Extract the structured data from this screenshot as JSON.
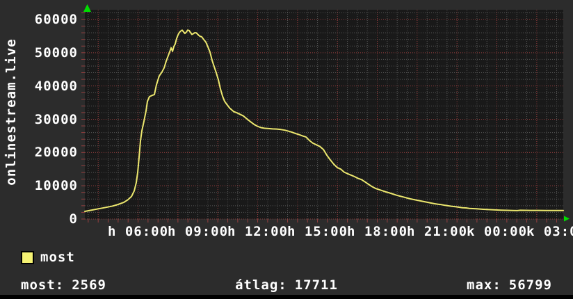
{
  "colors": {
    "frame_bg": "#2c2c2c",
    "plot_bg": "#191919",
    "grid_minor": "#575757",
    "grid_major": "#963f3f",
    "axis_tick": "#963f3f",
    "line": "#ece76e",
    "legend_swatch": "#f5f273",
    "text": "#ffffff",
    "arrow": "#00dd00",
    "bottom_bar": "#000000"
  },
  "chart_data": {
    "type": "line",
    "title": "",
    "xlabel": "",
    "ylabel": "onlinestream.live",
    "grid": "dotted, minor gray every 2000 / 30min, major red every 10000 / 2h",
    "legend_position": "bottom-left",
    "x_axis": {
      "unit": "time of day (h = Monday, k = Tuesday)",
      "start_hour": 3.33,
      "end_hour": 27.33,
      "minor_step_hours": 0.5,
      "major_step_hours": 2,
      "first_major_hour": 4,
      "labels": [
        {
          "hour": 6,
          "label": "h 06:00"
        },
        {
          "hour": 9,
          "label": "h 09:00"
        },
        {
          "hour": 12,
          "label": "h 12:00"
        },
        {
          "hour": 15,
          "label": "h 15:00"
        },
        {
          "hour": 18,
          "label": "h 18:00"
        },
        {
          "hour": 21,
          "label": "h 21:00"
        },
        {
          "hour": 24,
          "label": "k 00:00"
        },
        {
          "hour": 27,
          "label": "k 03:00"
        }
      ]
    },
    "y_axis": {
      "min": 0,
      "scale_max": 60000,
      "display_max": 62900,
      "minor_step": 2000,
      "major_step": 10000,
      "ticks": [
        {
          "value": 60000,
          "label": "60000"
        },
        {
          "value": 50000,
          "label": "50000"
        },
        {
          "value": 40000,
          "label": "40000"
        },
        {
          "value": 30000,
          "label": "30000"
        },
        {
          "value": 20000,
          "label": "20000"
        },
        {
          "value": 10000,
          "label": "10000"
        },
        {
          "value": 0,
          "label": "0"
        }
      ]
    },
    "series": [
      {
        "name": "most",
        "color": "#ece76e",
        "points": [
          [
            3.33,
            2300
          ],
          [
            3.68,
            2700
          ],
          [
            4.03,
            3100
          ],
          [
            4.38,
            3500
          ],
          [
            4.73,
            3900
          ],
          [
            5.0,
            4400
          ],
          [
            5.28,
            5000
          ],
          [
            5.49,
            5800
          ],
          [
            5.67,
            6800
          ],
          [
            5.81,
            8500
          ],
          [
            5.91,
            11000
          ],
          [
            5.98,
            14000
          ],
          [
            6.05,
            18500
          ],
          [
            6.12,
            23500
          ],
          [
            6.19,
            26500
          ],
          [
            6.3,
            29500
          ],
          [
            6.4,
            32500
          ],
          [
            6.47,
            35400
          ],
          [
            6.57,
            36800
          ],
          [
            6.71,
            37200
          ],
          [
            6.82,
            37400
          ],
          [
            6.92,
            40300
          ],
          [
            7.06,
            43000
          ],
          [
            7.2,
            44200
          ],
          [
            7.31,
            45500
          ],
          [
            7.41,
            47500
          ],
          [
            7.52,
            49200
          ],
          [
            7.59,
            50300
          ],
          [
            7.66,
            51500
          ],
          [
            7.73,
            50400
          ],
          [
            7.8,
            51900
          ],
          [
            7.86,
            52600
          ],
          [
            7.93,
            54200
          ],
          [
            8.0,
            55300
          ],
          [
            8.07,
            56100
          ],
          [
            8.14,
            56500
          ],
          [
            8.21,
            56800
          ],
          [
            8.28,
            56300
          ],
          [
            8.35,
            55800
          ],
          [
            8.42,
            56200
          ],
          [
            8.49,
            56799
          ],
          [
            8.56,
            56700
          ],
          [
            8.63,
            56100
          ],
          [
            8.7,
            55500
          ],
          [
            8.77,
            55700
          ],
          [
            8.84,
            56000
          ],
          [
            8.91,
            56000
          ],
          [
            8.98,
            55600
          ],
          [
            9.05,
            55200
          ],
          [
            9.12,
            54900
          ],
          [
            9.19,
            54800
          ],
          [
            9.29,
            54000
          ],
          [
            9.4,
            53200
          ],
          [
            9.5,
            51800
          ],
          [
            9.61,
            50200
          ],
          [
            9.71,
            47800
          ],
          [
            9.82,
            45800
          ],
          [
            9.92,
            44000
          ],
          [
            10.03,
            41800
          ],
          [
            10.13,
            39200
          ],
          [
            10.24,
            36900
          ],
          [
            10.34,
            35400
          ],
          [
            10.45,
            34500
          ],
          [
            10.59,
            33400
          ],
          [
            10.8,
            32300
          ],
          [
            10.93,
            32000
          ],
          [
            11.11,
            31500
          ],
          [
            11.28,
            31000
          ],
          [
            11.46,
            30100
          ],
          [
            11.63,
            29300
          ],
          [
            11.81,
            28500
          ],
          [
            11.98,
            27900
          ],
          [
            12.16,
            27500
          ],
          [
            12.33,
            27300
          ],
          [
            12.54,
            27200
          ],
          [
            12.75,
            27100
          ],
          [
            12.96,
            27050
          ],
          [
            13.17,
            26900
          ],
          [
            13.38,
            26700
          ],
          [
            13.55,
            26400
          ],
          [
            13.73,
            26100
          ],
          [
            13.9,
            25700
          ],
          [
            14.07,
            25400
          ],
          [
            14.25,
            25000
          ],
          [
            14.42,
            24700
          ],
          [
            14.6,
            23600
          ],
          [
            14.77,
            22800
          ],
          [
            14.95,
            22300
          ],
          [
            15.12,
            21800
          ],
          [
            15.3,
            20900
          ],
          [
            15.47,
            19200
          ],
          [
            15.64,
            17800
          ],
          [
            15.82,
            16500
          ],
          [
            15.99,
            15500
          ],
          [
            16.17,
            15000
          ],
          [
            16.34,
            14100
          ],
          [
            16.52,
            13600
          ],
          [
            16.69,
            13200
          ],
          [
            16.86,
            12750
          ],
          [
            17.04,
            12200
          ],
          [
            17.21,
            11850
          ],
          [
            17.39,
            11150
          ],
          [
            17.56,
            10450
          ],
          [
            17.74,
            9750
          ],
          [
            17.91,
            9200
          ],
          [
            18.09,
            8850
          ],
          [
            18.26,
            8500
          ],
          [
            18.43,
            8150
          ],
          [
            18.61,
            7870
          ],
          [
            18.78,
            7530
          ],
          [
            18.96,
            7170
          ],
          [
            19.13,
            6900
          ],
          [
            19.31,
            6630
          ],
          [
            19.48,
            6350
          ],
          [
            19.66,
            6060
          ],
          [
            19.83,
            5850
          ],
          [
            20.0,
            5640
          ],
          [
            20.18,
            5440
          ],
          [
            20.35,
            5230
          ],
          [
            20.53,
            5020
          ],
          [
            20.7,
            4810
          ],
          [
            20.88,
            4600
          ],
          [
            21.05,
            4460
          ],
          [
            21.22,
            4320
          ],
          [
            21.4,
            4110
          ],
          [
            21.57,
            3970
          ],
          [
            21.75,
            3830
          ],
          [
            21.92,
            3690
          ],
          [
            22.1,
            3550
          ],
          [
            22.27,
            3410
          ],
          [
            22.45,
            3340
          ],
          [
            22.62,
            3200
          ],
          [
            22.79,
            3140
          ],
          [
            22.97,
            3070
          ],
          [
            23.14,
            3000
          ],
          [
            23.32,
            2930
          ],
          [
            23.49,
            2860
          ],
          [
            23.84,
            2760
          ],
          [
            24.19,
            2680
          ],
          [
            24.54,
            2620
          ],
          [
            24.82,
            2570
          ],
          [
            25.03,
            2540
          ],
          [
            25.17,
            2640
          ],
          [
            25.45,
            2620
          ],
          [
            25.76,
            2600
          ],
          [
            26.11,
            2590
          ],
          [
            26.46,
            2580
          ],
          [
            26.81,
            2575
          ],
          [
            27.16,
            2569
          ],
          [
            27.33,
            2569
          ]
        ]
      }
    ],
    "legend": [
      {
        "label": "most",
        "swatch_color": "#f5f273"
      }
    ],
    "stats": {
      "most_label": "most:",
      "most_value": "2569",
      "avg_label": "átlag:",
      "avg_value": "17711",
      "max_label": "max:",
      "max_value": "56799"
    }
  }
}
